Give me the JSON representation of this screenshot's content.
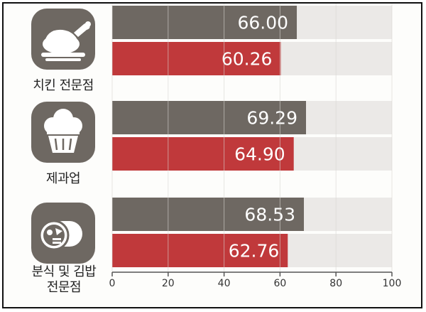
{
  "chart_data": {
    "type": "bar",
    "orientation": "horizontal",
    "categories": [
      "치킨 전문점",
      "제과업",
      "분식 및 김밥\n전문점"
    ],
    "series": [
      {
        "color": "#6e6862",
        "values": [
          66.0,
          69.29,
          68.53
        ]
      },
      {
        "color": "#c0393b",
        "values": [
          60.26,
          64.9,
          62.76
        ]
      }
    ],
    "value_labels": [
      [
        "66.00",
        "69.29",
        "68.53"
      ],
      [
        "60.26",
        "64.90",
        "62.76"
      ]
    ],
    "xlim": [
      0,
      100
    ],
    "x_ticks": [
      "0",
      "20",
      "40",
      "60",
      "80",
      "100"
    ],
    "grid": true,
    "track_color": "#ebe9e7"
  },
  "icons": [
    "chicken-icon",
    "muffin-icon",
    "gimbap-icon"
  ]
}
